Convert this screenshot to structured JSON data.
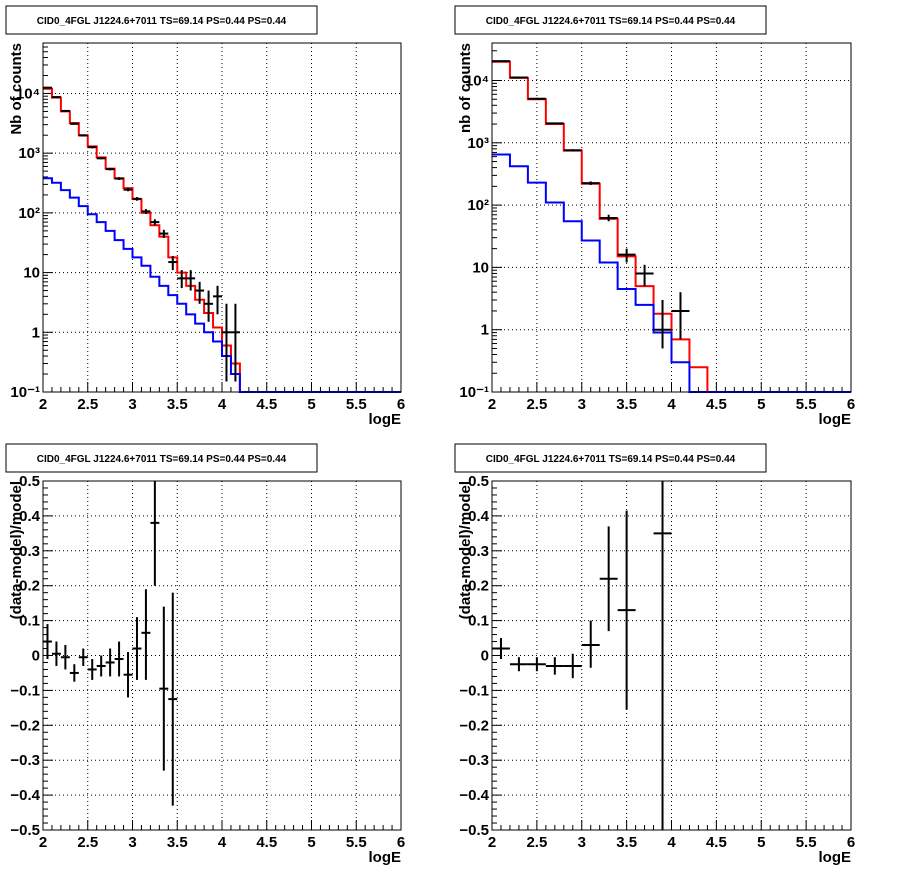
{
  "chart_data": [
    {
      "type": "line",
      "title": "CID0_4FGL J1224.6+7011 TS=69.14 PS=0.44 PS=0.44",
      "xlabel": "logE",
      "ylabel": "Nb of counts",
      "xlim": [
        2,
        6
      ],
      "ylim": [
        0.1,
        70000
      ],
      "yscale": "log",
      "grid": true,
      "x_ticks": [
        2,
        2.5,
        3,
        3.5,
        4,
        4.5,
        5,
        5.5,
        6
      ],
      "x_tick_labels": [
        "2",
        "2.5",
        "3",
        "3.5",
        "4",
        "4.5",
        "5",
        "5.5",
        "6"
      ],
      "y_ticks": [
        0.1,
        1,
        10,
        100,
        1000,
        10000
      ],
      "y_tick_labels": [
        "10⁻¹",
        "1",
        "10",
        "10²",
        "10³",
        "10⁴"
      ],
      "bin_edges": [
        2.0,
        2.1,
        2.2,
        2.3,
        2.4,
        2.5,
        2.6,
        2.7,
        2.8,
        2.9,
        3.0,
        3.1,
        3.2,
        3.3,
        3.4,
        3.5,
        3.6,
        3.7,
        3.8,
        3.9,
        4.0,
        4.1,
        4.2,
        4.3,
        4.4,
        4.5,
        4.6,
        4.7,
        4.8,
        4.9,
        5.0,
        5.1,
        5.2,
        5.3,
        5.4,
        5.5,
        5.6,
        5.7,
        5.8,
        5.9,
        6.0
      ],
      "series": [
        {
          "style": "step",
          "color": "#ff0000",
          "values": [
            12000,
            8500,
            5000,
            3200,
            2000,
            1300,
            850,
            550,
            380,
            260,
            170,
            100,
            62,
            40,
            18,
            10,
            6,
            3.5,
            2.1,
            1.2,
            0.6,
            0.3,
            0.1,
            0.1,
            0.1,
            0.1,
            0.1,
            0.1,
            0.1,
            0.1,
            0.1,
            0.1,
            0.1,
            0.1,
            0.1,
            0.1,
            0.1,
            0.1,
            0.1,
            0.1
          ]
        },
        {
          "style": "step",
          "color": "#0000ff",
          "values": [
            380,
            320,
            240,
            180,
            130,
            95,
            70,
            50,
            35,
            25,
            18,
            13,
            8.5,
            6,
            4.2,
            3,
            2,
            1.4,
            1,
            0.7,
            0.4,
            0.2,
            0.1,
            0.1,
            0.1,
            0.1,
            0.1,
            0.1,
            0.1,
            0.1,
            0.1,
            0.1,
            0.1,
            0.1,
            0.1,
            0.1,
            0.1,
            0.1,
            0.1,
            0.1
          ]
        },
        {
          "style": "points",
          "color": "#000000",
          "points": [
            {
              "x": 2.05,
              "y": 12500,
              "lo": 12200,
              "hi": 12800
            },
            {
              "x": 2.15,
              "y": 8700,
              "lo": 8500,
              "hi": 8900
            },
            {
              "x": 2.25,
              "y": 5100,
              "lo": 4950,
              "hi": 5250
            },
            {
              "x": 2.35,
              "y": 3100,
              "lo": 3000,
              "hi": 3200
            },
            {
              "x": 2.45,
              "y": 1980,
              "lo": 1900,
              "hi": 2060
            },
            {
              "x": 2.55,
              "y": 1260,
              "lo": 1200,
              "hi": 1320
            },
            {
              "x": 2.65,
              "y": 820,
              "lo": 790,
              "hi": 850
            },
            {
              "x": 2.75,
              "y": 540,
              "lo": 515,
              "hi": 565
            },
            {
              "x": 2.85,
              "y": 375,
              "lo": 355,
              "hi": 395
            },
            {
              "x": 2.95,
              "y": 245,
              "lo": 230,
              "hi": 260
            },
            {
              "x": 3.05,
              "y": 172,
              "lo": 160,
              "hi": 184
            },
            {
              "x": 3.15,
              "y": 106,
              "lo": 96,
              "hi": 116
            },
            {
              "x": 3.25,
              "y": 70,
              "lo": 62,
              "hi": 78
            },
            {
              "x": 3.35,
              "y": 45,
              "lo": 38,
              "hi": 52
            },
            {
              "x": 3.45,
              "y": 15,
              "lo": 11,
              "hi": 19
            },
            {
              "x": 3.55,
              "y": 8,
              "lo": 5.5,
              "hi": 11
            },
            {
              "x": 3.65,
              "y": 8,
              "lo": 5,
              "hi": 11
            },
            {
              "x": 3.75,
              "y": 5,
              "lo": 3,
              "hi": 7
            },
            {
              "x": 3.85,
              "y": 3,
              "lo": 1.5,
              "hi": 5
            },
            {
              "x": 3.95,
              "y": 4,
              "lo": 2,
              "hi": 6
            },
            {
              "x": 4.05,
              "y": 1,
              "lo": 0.15,
              "hi": 3
            },
            {
              "x": 4.15,
              "y": 1,
              "lo": 0.15,
              "hi": 3
            }
          ]
        }
      ]
    },
    {
      "type": "line",
      "title": "CID0_4FGL J1224.6+7011 TS=69.14 PS=0.44 PS=0.44",
      "xlabel": "logE",
      "ylabel": "nb of counts",
      "xlim": [
        2,
        6
      ],
      "ylim": [
        0.1,
        40000
      ],
      "yscale": "log",
      "grid": true,
      "x_ticks": [
        2,
        2.5,
        3,
        3.5,
        4,
        4.5,
        5,
        5.5,
        6
      ],
      "x_tick_labels": [
        "2",
        "2.5",
        "3",
        "3.5",
        "4",
        "4.5",
        "5",
        "5.5",
        "6"
      ],
      "y_ticks": [
        0.1,
        1,
        10,
        100,
        1000,
        10000
      ],
      "y_tick_labels": [
        "10⁻¹",
        "1",
        "10",
        "10²",
        "10³",
        "10⁴"
      ],
      "bin_edges": [
        2.0,
        2.2,
        2.4,
        2.6,
        2.8,
        3.0,
        3.2,
        3.4,
        3.6,
        3.8,
        4.0,
        4.2,
        4.4,
        4.6,
        4.8,
        5.0,
        5.2,
        5.4,
        5.6,
        5.8,
        6.0
      ],
      "series": [
        {
          "style": "step",
          "color": "#ff0000",
          "values": [
            20000,
            11000,
            5000,
            2000,
            750,
            220,
            60,
            15,
            5,
            1.8,
            0.7,
            0.25,
            0.1,
            0.1,
            0.1,
            0.1,
            0.1,
            0.1,
            0.1,
            0.1
          ]
        },
        {
          "style": "step",
          "color": "#0000ff",
          "values": [
            650,
            420,
            230,
            110,
            55,
            27,
            12,
            4.5,
            2.5,
            0.9,
            0.3,
            0.1,
            0.1,
            0.1,
            0.1,
            0.1,
            0.1,
            0.1,
            0.1,
            0.1
          ]
        },
        {
          "style": "points",
          "color": "#000000",
          "points": [
            {
              "x": 2.1,
              "y": 20500,
              "lo": 20200,
              "hi": 20800
            },
            {
              "x": 2.3,
              "y": 11200,
              "lo": 11000,
              "hi": 11400
            },
            {
              "x": 2.5,
              "y": 5100,
              "lo": 4950,
              "hi": 5250
            },
            {
              "x": 2.7,
              "y": 2050,
              "lo": 1980,
              "hi": 2120
            },
            {
              "x": 2.9,
              "y": 760,
              "lo": 730,
              "hi": 790
            },
            {
              "x": 3.1,
              "y": 225,
              "lo": 210,
              "hi": 240
            },
            {
              "x": 3.3,
              "y": 62,
              "lo": 55,
              "hi": 70
            },
            {
              "x": 3.5,
              "y": 16,
              "lo": 12,
              "hi": 20
            },
            {
              "x": 3.7,
              "y": 8,
              "lo": 5,
              "hi": 11
            },
            {
              "x": 3.9,
              "y": 1,
              "lo": 0.5,
              "hi": 3
            },
            {
              "x": 4.1,
              "y": 2,
              "lo": 0.7,
              "hi": 4
            }
          ]
        }
      ]
    },
    {
      "type": "scatter",
      "title": "CID0_4FGL J1224.6+7011 TS=69.14 PS=0.44 PS=0.44",
      "xlabel": "logE",
      "ylabel": "(data-model)/model",
      "xlim": [
        2,
        6
      ],
      "ylim": [
        -0.5,
        0.5
      ],
      "grid": true,
      "x_ticks": [
        2,
        2.5,
        3,
        3.5,
        4,
        4.5,
        5,
        5.5,
        6
      ],
      "x_tick_labels": [
        "2",
        "2.5",
        "3",
        "3.5",
        "4",
        "4.5",
        "5",
        "5.5",
        "6"
      ],
      "y_ticks": [
        -0.5,
        -0.4,
        -0.3,
        -0.2,
        -0.1,
        0,
        0.1,
        0.2,
        0.3,
        0.4,
        0.5
      ],
      "y_tick_labels": [
        "−0.5",
        "−0.4",
        "−0.3",
        "−0.2",
        "−0.1",
        "0",
        "0.1",
        "0.2",
        "0.3",
        "0.4",
        "0.5"
      ],
      "x_half_width": 0.05,
      "points": [
        {
          "x": 2.05,
          "y": 0.04,
          "lo": -0.01,
          "hi": 0.09
        },
        {
          "x": 2.15,
          "y": 0.005,
          "lo": -0.03,
          "hi": 0.04
        },
        {
          "x": 2.25,
          "y": -0.005,
          "lo": -0.04,
          "hi": 0.03
        },
        {
          "x": 2.35,
          "y": -0.05,
          "lo": -0.075,
          "hi": -0.025
        },
        {
          "x": 2.45,
          "y": -0.005,
          "lo": -0.03,
          "hi": 0.02
        },
        {
          "x": 2.55,
          "y": -0.04,
          "lo": -0.07,
          "hi": -0.01
        },
        {
          "x": 2.65,
          "y": -0.03,
          "lo": -0.06,
          "hi": 0.0
        },
        {
          "x": 2.75,
          "y": -0.02,
          "lo": -0.06,
          "hi": 0.02
        },
        {
          "x": 2.85,
          "y": -0.01,
          "lo": -0.06,
          "hi": 0.04
        },
        {
          "x": 2.95,
          "y": -0.055,
          "lo": -0.12,
          "hi": 0.01
        },
        {
          "x": 3.05,
          "y": 0.02,
          "lo": -0.07,
          "hi": 0.11
        },
        {
          "x": 3.15,
          "y": 0.065,
          "lo": -0.07,
          "hi": 0.19
        },
        {
          "x": 3.25,
          "y": 0.38,
          "lo": 0.2,
          "hi": 0.5
        },
        {
          "x": 3.35,
          "y": -0.095,
          "lo": -0.33,
          "hi": 0.14
        },
        {
          "x": 3.45,
          "y": -0.125,
          "lo": -0.43,
          "hi": 0.18
        }
      ]
    },
    {
      "type": "scatter",
      "title": "CID0_4FGL J1224.6+7011 TS=69.14 PS=0.44 PS=0.44",
      "xlabel": "logE",
      "ylabel": "(data-model)/model",
      "xlim": [
        2,
        6
      ],
      "ylim": [
        -0.5,
        0.5
      ],
      "grid": true,
      "x_ticks": [
        2,
        2.5,
        3,
        3.5,
        4,
        4.5,
        5,
        5.5,
        6
      ],
      "x_tick_labels": [
        "2",
        "2.5",
        "3",
        "3.5",
        "4",
        "4.5",
        "5",
        "5.5",
        "6"
      ],
      "y_ticks": [
        -0.5,
        -0.4,
        -0.3,
        -0.2,
        -0.1,
        0,
        0.1,
        0.2,
        0.3,
        0.4,
        0.5
      ],
      "y_tick_labels": [
        "−0.5",
        "−0.4",
        "−0.3",
        "−0.2",
        "−0.1",
        "0",
        "0.1",
        "0.2",
        "0.3",
        "0.4",
        "0.5"
      ],
      "x_half_width": 0.1,
      "points": [
        {
          "x": 2.1,
          "y": 0.02,
          "lo": -0.01,
          "hi": 0.05
        },
        {
          "x": 2.3,
          "y": -0.025,
          "lo": -0.045,
          "hi": -0.005
        },
        {
          "x": 2.5,
          "y": -0.025,
          "lo": -0.045,
          "hi": -0.005
        },
        {
          "x": 2.7,
          "y": -0.03,
          "lo": -0.055,
          "hi": -0.005
        },
        {
          "x": 2.9,
          "y": -0.03,
          "lo": -0.065,
          "hi": 0.005
        },
        {
          "x": 3.1,
          "y": 0.03,
          "lo": -0.035,
          "hi": 0.1
        },
        {
          "x": 3.3,
          "y": 0.22,
          "lo": 0.07,
          "hi": 0.37
        },
        {
          "x": 3.5,
          "y": 0.13,
          "lo": -0.155,
          "hi": 0.415
        },
        {
          "x": 3.9,
          "y": 0.35,
          "lo": -0.5,
          "hi": 0.5
        }
      ]
    }
  ]
}
